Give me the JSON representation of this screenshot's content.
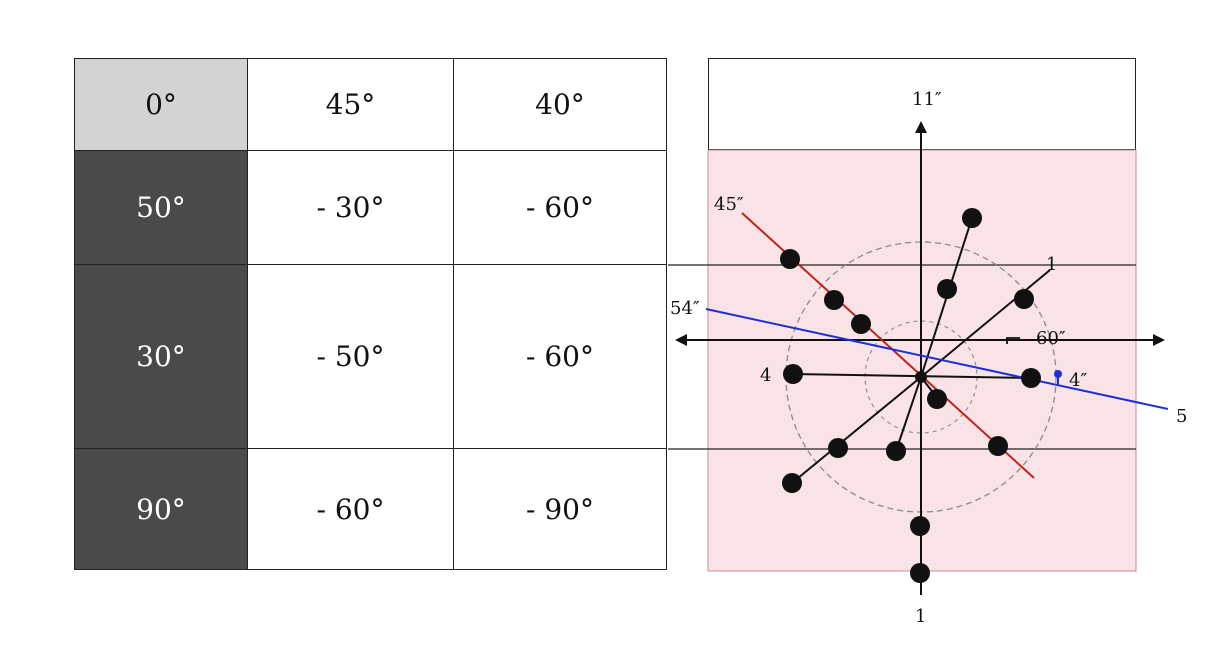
{
  "table": {
    "header": [
      "0°",
      "45°",
      "40°"
    ],
    "rows": [
      [
        "50°",
        "- 30°",
        "- 60°"
      ],
      [
        "30°",
        "- 50°",
        "- 60°"
      ],
      [
        "90°",
        "- 60°",
        "- 90°"
      ]
    ]
  },
  "diagram": {
    "background_color": "#f9e3e6",
    "labels": {
      "top": "11″",
      "bottom": "1",
      "red_line_end": "45″",
      "blue_line_end": "54″",
      "blue_line_right": "5",
      "upper_right": "1",
      "arrow_right": "60″",
      "left_point": "4",
      "right_point": "4″"
    },
    "colors": {
      "red_line": "#c0221b",
      "blue_line": "#1f2fd6",
      "dots": "#111111",
      "circles": "#8a8a8a"
    }
  }
}
